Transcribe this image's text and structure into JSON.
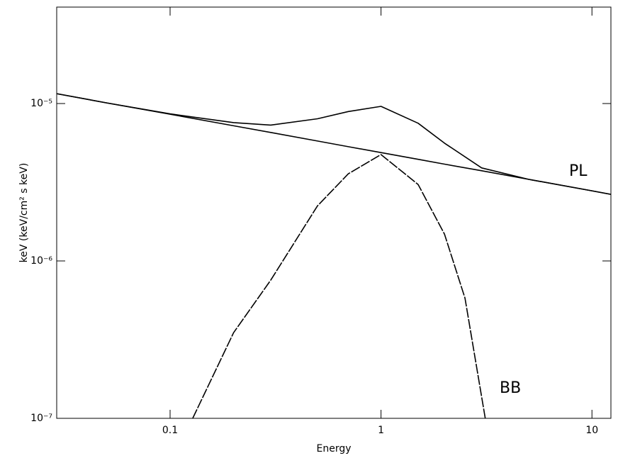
{
  "chart_data": {
    "type": "line",
    "x_label": "Energy",
    "y_label": "keV (keV/cm² s keV)",
    "log_x": true,
    "log_y": true,
    "xlim": [
      0.029,
      12.3
    ],
    "ylim": [
      1e-07,
      4.1e-05
    ],
    "xticks": [
      0.1,
      1,
      10
    ],
    "yticks": [
      {
        "value": 1e-07,
        "label": "10⁻⁷"
      },
      {
        "value": 1e-06,
        "label": "10⁻⁶"
      },
      {
        "value": 1e-05,
        "label": "10⁻⁵"
      }
    ],
    "series": [
      {
        "name": "PL",
        "color": "#000000",
        "x": [
          0.029,
          0.05,
          0.1,
          0.2,
          0.3,
          0.5,
          0.7,
          1,
          1.5,
          2,
          3,
          5,
          10,
          12.3
        ],
        "values": [
          1.156e-05,
          1.01e-05,
          8.55e-06,
          7.22e-06,
          6.55e-06,
          5.78e-06,
          5.32e-06,
          4.88e-06,
          4.42e-06,
          4.12e-06,
          3.74e-06,
          3.3e-06,
          2.79e-06,
          2.65e-06
        ]
      },
      {
        "name": "BB",
        "color": "#000000",
        "x": [
          0.128,
          0.2,
          0.3,
          0.5,
          0.7,
          1,
          1.5,
          2,
          2.5,
          3.12
        ],
        "values": [
          1e-07,
          3.5e-07,
          7.55e-07,
          2.24e-06,
          3.58e-06,
          4.74e-06,
          3.06e-06,
          1.48e-06,
          5.8e-07,
          1e-07
        ]
      },
      {
        "color": "#000000",
        "x": [
          0.029,
          0.05,
          0.1,
          0.2,
          0.3,
          0.5,
          0.7,
          1,
          1.5,
          2,
          3,
          5,
          10,
          12.3
        ],
        "values": [
          1.156e-05,
          1.01e-05,
          8.6e-06,
          7.57e-06,
          7.3e-06,
          8e-06,
          8.9e-06,
          9.6e-06,
          7.5e-06,
          5.6e-06,
          3.9e-06,
          3.3e-06,
          2.79e-06,
          2.65e-06
        ]
      }
    ]
  }
}
